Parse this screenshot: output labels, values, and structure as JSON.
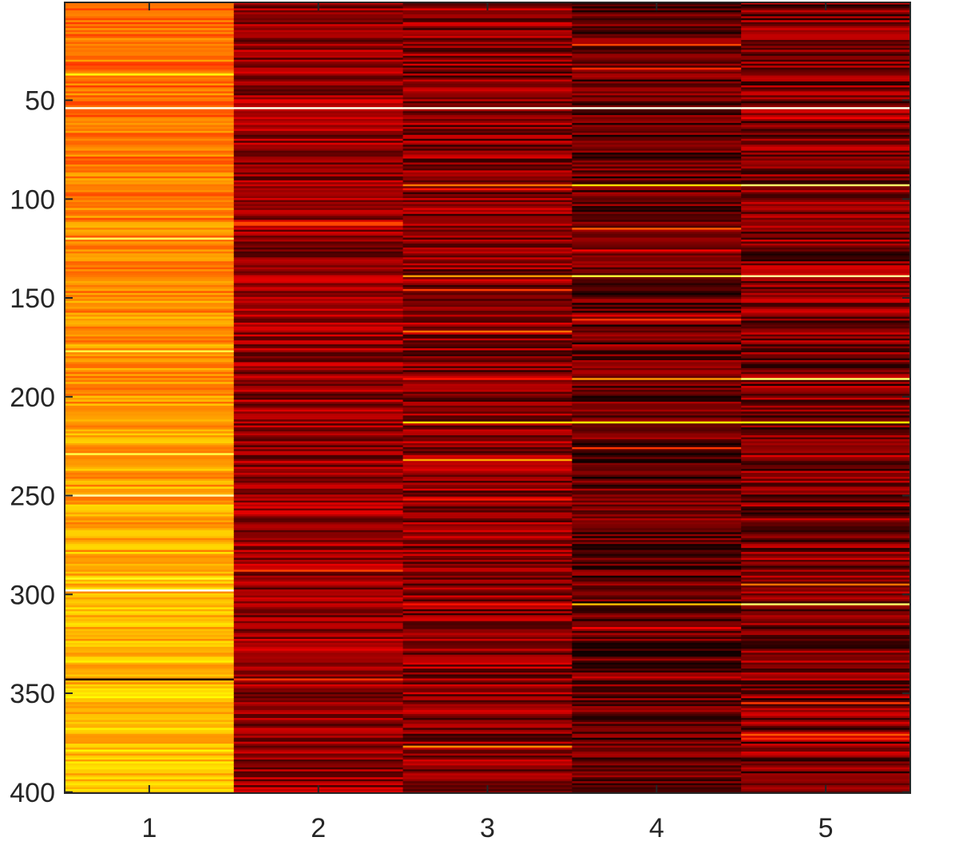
{
  "chart_data": {
    "type": "heatmap",
    "title": "",
    "xlabel": "",
    "ylabel": "",
    "x_categories": [
      "1",
      "2",
      "3",
      "4",
      "5"
    ],
    "y_range": [
      1,
      400
    ],
    "y_direction": "reversed",
    "x_ticks": [
      1,
      2,
      3,
      4,
      5
    ],
    "y_ticks": [
      50,
      100,
      150,
      200,
      250,
      300,
      350,
      400
    ],
    "colormap": "hot",
    "colorbar": false,
    "grid": false,
    "value_range": [
      0,
      1
    ],
    "column_profiles": [
      {
        "column": "1",
        "typical_value": 0.52,
        "spread": 0.08,
        "trend_per_row": 0.0004
      },
      {
        "column": "2",
        "typical_value": 0.22,
        "spread": 0.12,
        "trend_per_row": 0.0
      },
      {
        "column": "3",
        "typical_value": 0.2,
        "spread": 0.13,
        "trend_per_row": 0.0
      },
      {
        "column": "4",
        "typical_value": 0.14,
        "spread": 0.12,
        "trend_per_row": 0.0
      },
      {
        "column": "5",
        "typical_value": 0.18,
        "spread": 0.14,
        "trend_per_row": 0.0
      }
    ],
    "highlight_rows": [
      {
        "row": 54,
        "values": [
          0.98,
          0.98,
          0.98,
          0.98,
          0.98
        ]
      },
      {
        "row": 93,
        "values": [
          0.55,
          0.3,
          0.55,
          0.7,
          0.85
        ]
      },
      {
        "row": 139,
        "values": [
          0.55,
          0.3,
          0.6,
          0.8,
          0.9
        ]
      },
      {
        "row": 191,
        "values": [
          0.6,
          0.25,
          0.4,
          0.6,
          0.85
        ]
      },
      {
        "row": 213,
        "values": [
          0.6,
          0.3,
          0.7,
          0.75,
          0.75
        ]
      },
      {
        "row": 305,
        "values": [
          0.65,
          0.3,
          0.4,
          0.65,
          0.85
        ]
      },
      {
        "row": 343,
        "values": [
          0.05,
          0.45,
          0.3,
          0.2,
          0.3
        ]
      }
    ]
  }
}
